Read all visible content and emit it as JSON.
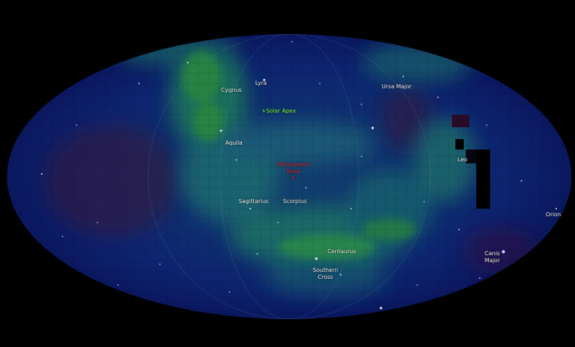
{
  "labels": {
    "lyra": "Lyra",
    "cygnus": "Cygnus",
    "ursa_major": "Ursa Major",
    "solar_apex": "+Solar Apex",
    "aquila": "Aquila",
    "heliosphere_nose": "Heliosphere Nose",
    "nose_marker": "X",
    "leo": "Leo",
    "sagittarius": "Sagittarius",
    "scorpius": "Scorpius",
    "orion": "Orion",
    "centaurus": "Centaurus",
    "canis_major": "Canis Major",
    "southern_cross": "Southern Cross"
  },
  "colors": {
    "background": "#000000",
    "map_low": "#0b1660",
    "map_mid": "#0e5a78",
    "map_high": "#1f8a4a",
    "map_red": "#3a1030",
    "apex_label": "#7cff3a",
    "nose_label": "#e0283c"
  }
}
